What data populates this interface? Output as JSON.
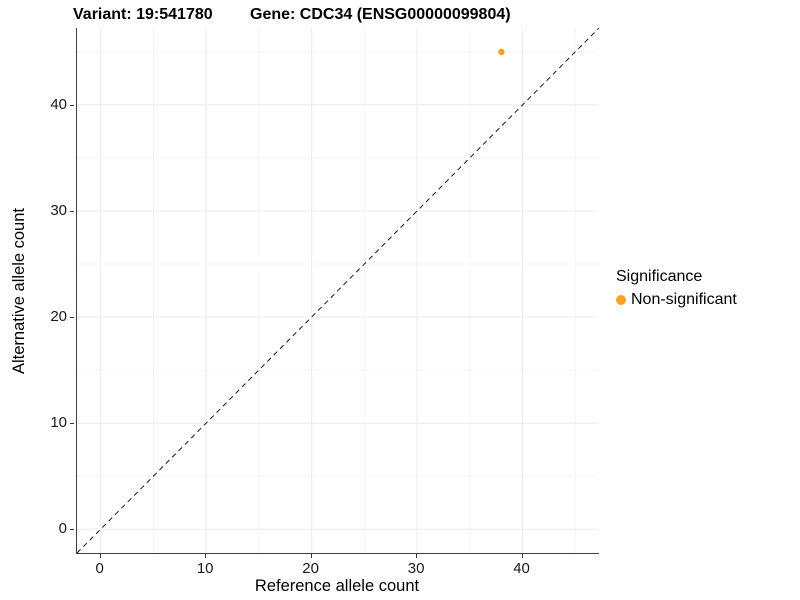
{
  "chart_data": {
    "type": "scatter",
    "titles": {
      "variant": "Variant: 19:541780",
      "gene": "Gene: CDC34 (ENSG00000099804)"
    },
    "xlabel": "Reference allele count",
    "ylabel": "Alternative allele count",
    "xlim": [
      -2.25,
      47.25
    ],
    "ylim": [
      -2.25,
      47.25
    ],
    "x_ticks": [
      0,
      10,
      20,
      30,
      40
    ],
    "y_ticks": [
      0,
      10,
      20,
      30,
      40
    ],
    "x_minor_ticks": [
      5,
      15,
      25,
      35,
      45
    ],
    "y_minor_ticks": [
      5,
      15,
      25,
      35,
      45
    ],
    "grid": {
      "major_color": "#EBEBEB",
      "minor_color": "#F4F4F4"
    },
    "axis_color": "#3f3f3f",
    "identity_line": {
      "style": "dashed",
      "from": -2.25,
      "to": 47.25,
      "color": "#1a1a1a"
    },
    "series": [
      {
        "name": "Non-significant",
        "color": "#FCA121",
        "points": [
          {
            "x": 38,
            "y": 45
          }
        ]
      }
    ],
    "legend": {
      "position": "right",
      "title": "Significance",
      "entries": [
        {
          "label": "Non-significant",
          "color": "#FCA121"
        }
      ]
    }
  }
}
